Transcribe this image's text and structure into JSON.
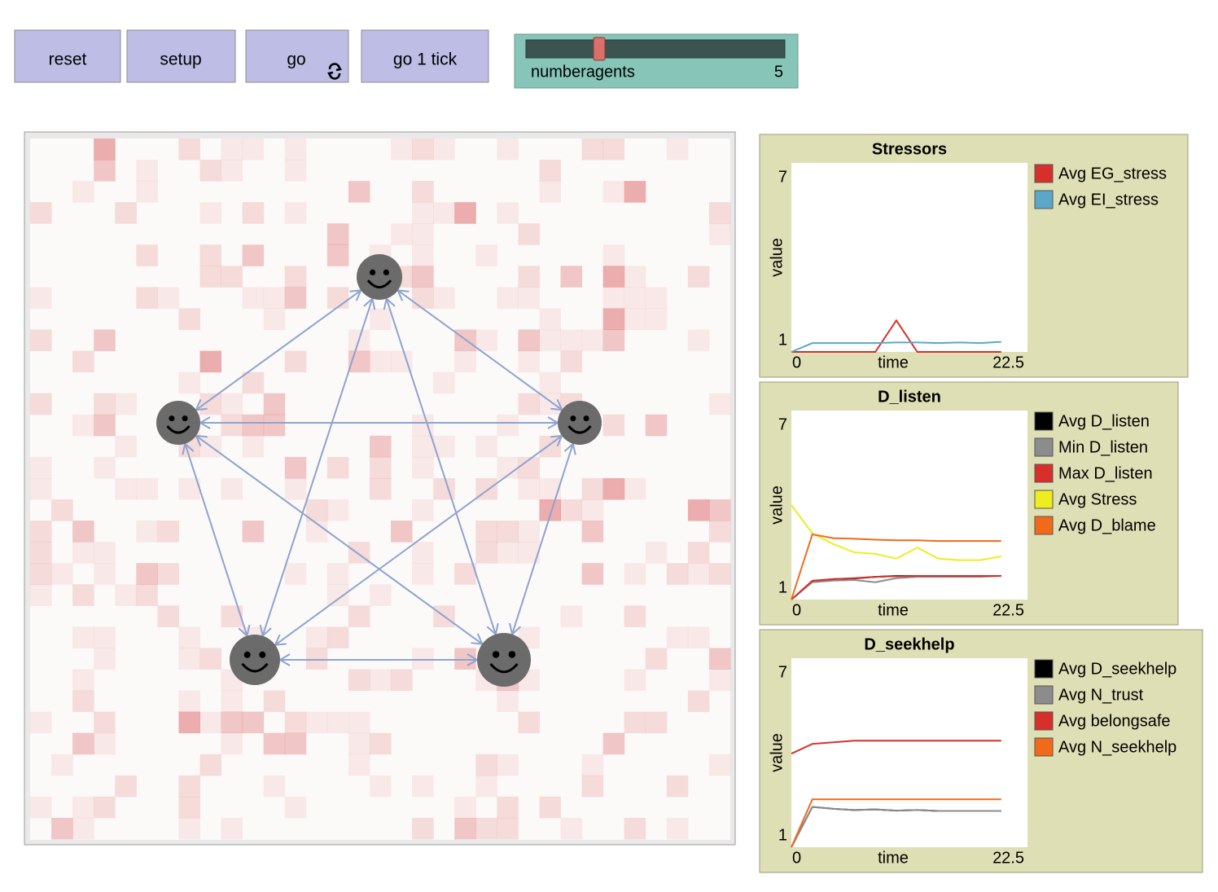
{
  "buttons": [
    {
      "label": "reset"
    },
    {
      "label": "setup"
    },
    {
      "label": "go"
    },
    {
      "label": "go 1 tick"
    }
  ],
  "slider": {
    "label": "numberagents",
    "value": 5
  },
  "plots": [
    {
      "type": "line",
      "title": "Stressors",
      "x_label": "time",
      "y_label": "value",
      "x": [
        0,
        2,
        4,
        6,
        8,
        10,
        12,
        14,
        16,
        18,
        20
      ],
      "xlim": [
        0,
        22.5
      ],
      "ylim": [
        1,
        7
      ],
      "xticks": [
        0,
        22.5
      ],
      "yticks": [
        1,
        7
      ],
      "series": [
        {
          "name": "Avg EG_stress",
          "color": "#d7302a",
          "values": [
            1,
            1,
            1,
            1,
            1,
            2.0,
            1,
            1,
            1,
            1,
            1
          ]
        },
        {
          "name": "Avg EI_stress",
          "color": "#5aa7c9",
          "values": [
            1.0,
            1.28,
            1.28,
            1.28,
            1.28,
            1.3,
            1.3,
            1.28,
            1.3,
            1.28,
            1.32
          ]
        }
      ]
    },
    {
      "type": "line",
      "title": "D_listen",
      "x_label": "time",
      "y_label": "value",
      "x": [
        0,
        2,
        4,
        6,
        8,
        10,
        12,
        14,
        16,
        18,
        20
      ],
      "xlim": [
        0,
        22.5
      ],
      "ylim": [
        1,
        7
      ],
      "xticks": [
        0,
        22.5
      ],
      "yticks": [
        1,
        7
      ],
      "series": [
        {
          "name": "Avg D_listen",
          "color": "#000000",
          "values": [
            1,
            1.57,
            1.65,
            1.67,
            1.72,
            1.75,
            1.75,
            1.75,
            1.75,
            1.75,
            1.75
          ]
        },
        {
          "name": "Min D_listen",
          "color": "#8c8c8c",
          "values": [
            1,
            1.55,
            1.6,
            1.62,
            1.55,
            1.68,
            1.72,
            1.72,
            1.72,
            1.72,
            1.75
          ]
        },
        {
          "name": "Max D_listen",
          "color": "#d7302a",
          "values": [
            1,
            1.6,
            1.65,
            1.68,
            1.72,
            1.74,
            1.75,
            1.75,
            1.75,
            1.75,
            1.75
          ]
        },
        {
          "name": "Avg Stress",
          "color": "#eded20",
          "values": [
            4.0,
            3.1,
            2.76,
            2.5,
            2.45,
            2.3,
            2.65,
            2.3,
            2.25,
            2.25,
            2.37
          ]
        },
        {
          "name": "Avg D_blame",
          "color": "#f06a1a",
          "values": [
            1,
            3.07,
            2.95,
            2.93,
            2.9,
            2.88,
            2.88,
            2.86,
            2.86,
            2.86,
            2.86
          ]
        }
      ]
    },
    {
      "type": "line",
      "title": "D_seekhelp",
      "x_label": "time",
      "y_label": "value",
      "x": [
        0,
        2,
        4,
        6,
        8,
        10,
        12,
        14,
        16,
        18,
        20
      ],
      "xlim": [
        0,
        22.5
      ],
      "ylim": [
        1,
        7
      ],
      "xticks": [
        0,
        22.5
      ],
      "yticks": [
        1,
        7
      ],
      "series": [
        {
          "name": "Avg D_seekhelp",
          "color": "#000000",
          "values": [
            1,
            2.28,
            2.22,
            2.18,
            2.2,
            2.16,
            2.18,
            2.15,
            2.15,
            2.15,
            2.15
          ]
        },
        {
          "name": "Avg N_trust",
          "color": "#8c8c8c",
          "values": [
            1,
            2.28,
            2.22,
            2.18,
            2.2,
            2.16,
            2.18,
            2.15,
            2.15,
            2.15,
            2.15
          ]
        },
        {
          "name": "Avg belongsafe",
          "color": "#d7302a",
          "values": [
            3.97,
            4.28,
            4.33,
            4.38,
            4.38,
            4.38,
            4.38,
            4.38,
            4.38,
            4.38,
            4.38
          ]
        },
        {
          "name": "Avg N_seekhelp",
          "color": "#f06a1a",
          "values": [
            1,
            2.52,
            2.52,
            2.52,
            2.52,
            2.52,
            2.52,
            2.52,
            2.52,
            2.52,
            2.52
          ]
        }
      ]
    }
  ]
}
